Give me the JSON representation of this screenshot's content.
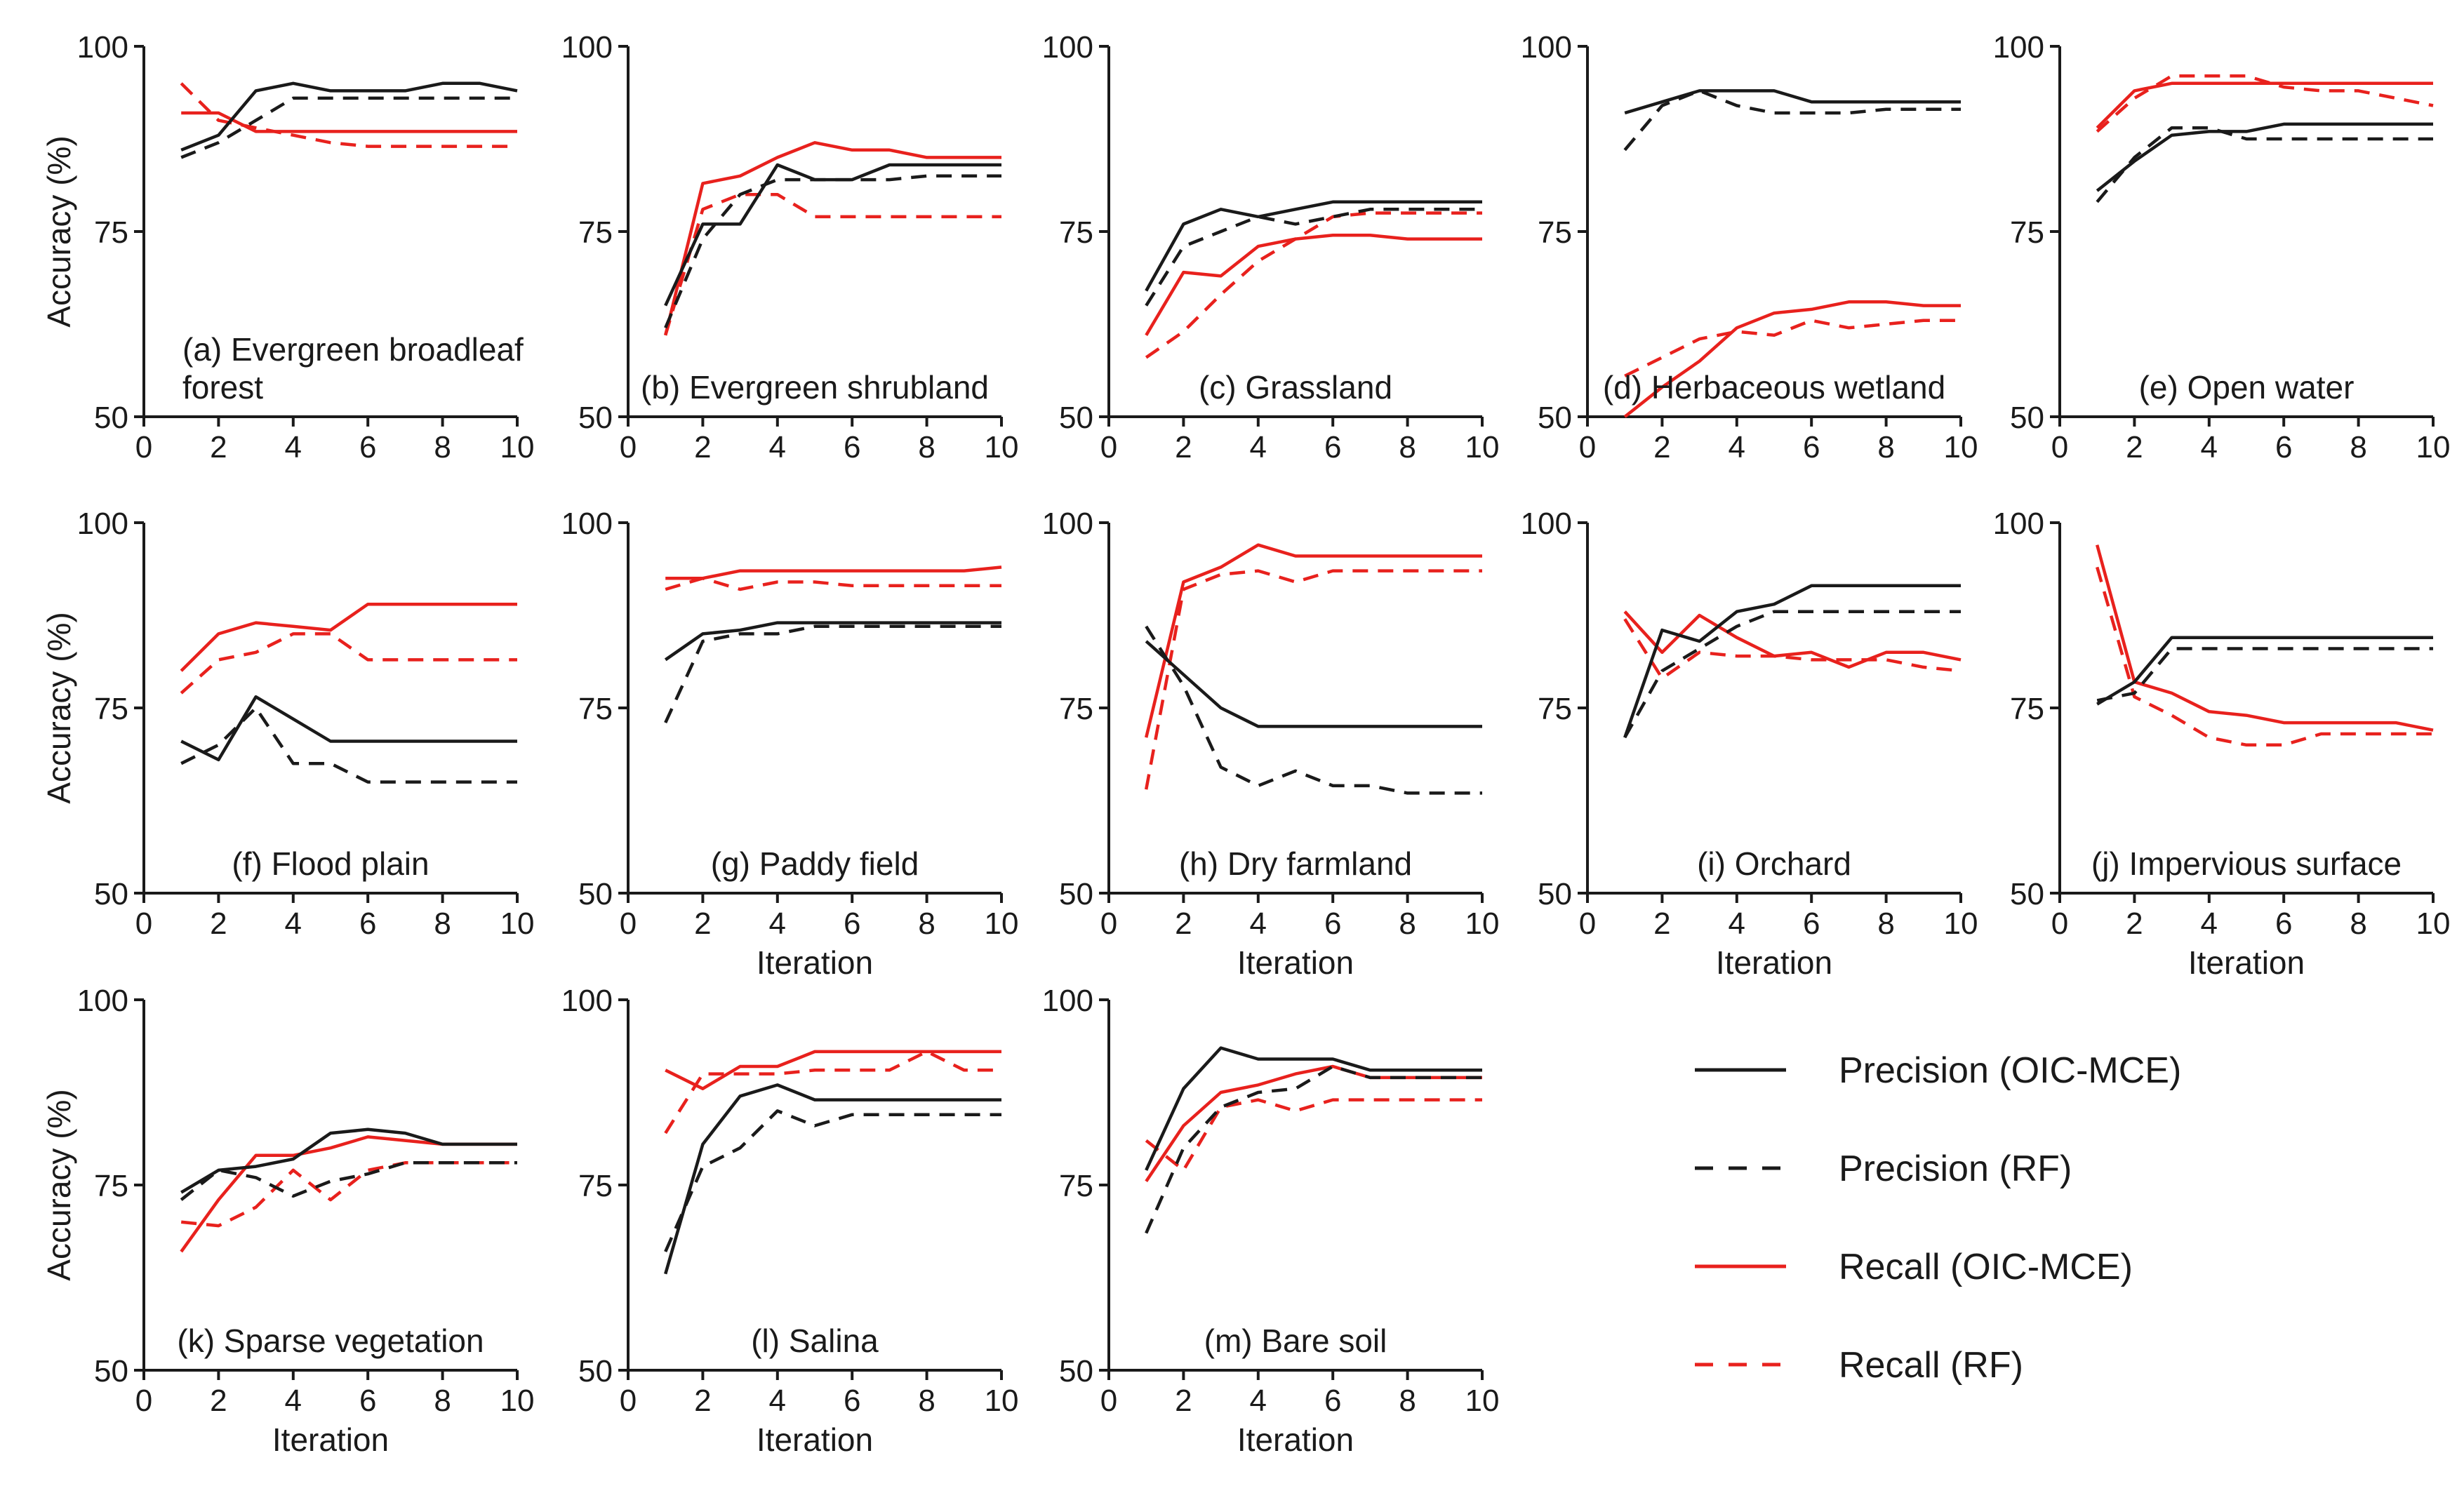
{
  "chart_data": {
    "type": "line",
    "title": "",
    "xlabel": "Iteration",
    "ylabel": "Accuracy (%)",
    "xlim": [
      0,
      10
    ],
    "ylim": [
      50,
      100
    ],
    "xticks": [
      0,
      2,
      4,
      6,
      8,
      10
    ],
    "yticks": [
      50,
      75,
      100
    ],
    "grid": false,
    "legend": {
      "placement": "bottom-right",
      "entries": [
        {
          "key": "prec_oic",
          "label": "Precision (OIC-MCE)",
          "color": "#1a1a1a",
          "dashed": false
        },
        {
          "key": "prec_rf",
          "label": "Precision (RF)",
          "color": "#1a1a1a",
          "dashed": true
        },
        {
          "key": "rec_oic",
          "label": "Recall (OIC-MCE)",
          "color": "#e8211d",
          "dashed": false
        },
        {
          "key": "rec_rf",
          "label": "Recall (RF)",
          "color": "#e8211d",
          "dashed": true
        }
      ]
    },
    "x": [
      1,
      2,
      3,
      4,
      5,
      6,
      7,
      8,
      9,
      10
    ],
    "panels": [
      {
        "id": "a",
        "label": [
          "(a) Evergreen broadleaf",
          "forest"
        ],
        "label_pos": "bottom-left",
        "xlabel_shown": false,
        "ylabel_shown": true,
        "series": {
          "prec_oic": [
            86,
            88,
            94,
            95,
            94,
            94,
            94,
            95,
            95,
            94
          ],
          "prec_rf": [
            85,
            87,
            90,
            93,
            93,
            93,
            93,
            93,
            93,
            93
          ],
          "rec_oic": [
            91,
            91,
            88.5,
            88.5,
            88.5,
            88.5,
            88.5,
            88.5,
            88.5,
            88.5
          ],
          "rec_rf": [
            95,
            90,
            89,
            88,
            87,
            86.5,
            86.5,
            86.5,
            86.5,
            86.5
          ]
        }
      },
      {
        "id": "b",
        "label": [
          "(b) Evergreen shrubland"
        ],
        "label_pos": "bottom-center",
        "xlabel_shown": false,
        "ylabel_shown": false,
        "series": {
          "prec_oic": [
            65,
            76,
            76,
            84,
            82,
            82,
            84,
            84,
            84,
            84
          ],
          "prec_rf": [
            62,
            74,
            80,
            82,
            82,
            82,
            82,
            82.5,
            82.5,
            82.5
          ],
          "rec_oic": [
            61,
            81.5,
            82.5,
            85,
            87,
            86,
            86,
            85,
            85,
            85
          ],
          "rec_rf": [
            61,
            78,
            80,
            80,
            77,
            77,
            77,
            77,
            77,
            77
          ]
        }
      },
      {
        "id": "c",
        "label": [
          "(c) Grassland"
        ],
        "label_pos": "bottom-center",
        "xlabel_shown": false,
        "ylabel_shown": false,
        "series": {
          "prec_oic": [
            67,
            76,
            78,
            77,
            78,
            79,
            79,
            79,
            79,
            79
          ],
          "prec_rf": [
            65,
            73,
            75,
            77,
            76,
            77,
            78,
            78,
            78,
            78
          ],
          "rec_oic": [
            61,
            69.5,
            69,
            73,
            74,
            74.5,
            74.5,
            74,
            74,
            74
          ],
          "rec_rf": [
            58,
            61.5,
            66.5,
            71,
            74,
            77,
            77.5,
            77.5,
            77.5,
            77.5
          ]
        }
      },
      {
        "id": "d",
        "label": [
          "(d) Herbaceous wetland"
        ],
        "label_pos": "bottom-center",
        "xlabel_shown": false,
        "ylabel_shown": false,
        "series": {
          "prec_oic": [
            91,
            92.5,
            94,
            94,
            94,
            92.5,
            92.5,
            92.5,
            92.5,
            92.5
          ],
          "prec_rf": [
            86,
            92,
            94,
            92,
            91,
            91,
            91,
            91.5,
            91.5,
            91.5
          ],
          "rec_oic": [
            50,
            54,
            57.5,
            62,
            64,
            64.5,
            65.5,
            65.5,
            65,
            65
          ],
          "rec_rf": [
            55.5,
            58,
            60.5,
            61.5,
            61,
            63,
            62,
            62.5,
            63,
            63
          ]
        }
      },
      {
        "id": "e",
        "label": [
          "(e) Open water"
        ],
        "label_pos": "bottom-center",
        "xlabel_shown": false,
        "ylabel_shown": false,
        "series": {
          "prec_oic": [
            80.5,
            84.5,
            88,
            88.5,
            88.5,
            89.5,
            89.5,
            89.5,
            89.5,
            89.5
          ],
          "prec_rf": [
            79,
            85,
            89,
            89,
            87.5,
            87.5,
            87.5,
            87.5,
            87.5,
            87.5
          ],
          "rec_oic": [
            89,
            94,
            95,
            95,
            95,
            95,
            95,
            95,
            95,
            95
          ],
          "rec_rf": [
            88.5,
            93,
            96,
            96,
            96,
            94.5,
            94,
            94,
            93,
            92
          ]
        }
      },
      {
        "id": "f",
        "label": [
          "(f) Flood plain"
        ],
        "label_pos": "bottom-center",
        "xlabel_shown": false,
        "ylabel_shown": true,
        "series": {
          "prec_oic": [
            70.5,
            68,
            76.5,
            73.5,
            70.5,
            70.5,
            70.5,
            70.5,
            70.5,
            70.5
          ],
          "prec_rf": [
            67.5,
            70,
            75,
            67.5,
            67.5,
            65,
            65,
            65,
            65,
            65
          ],
          "rec_oic": [
            80,
            85,
            86.5,
            86,
            85.5,
            89,
            89,
            89,
            89,
            89
          ],
          "rec_rf": [
            77,
            81.5,
            82.5,
            85,
            85,
            81.5,
            81.5,
            81.5,
            81.5,
            81.5
          ]
        }
      },
      {
        "id": "g",
        "label": [
          "(g) Paddy field"
        ],
        "label_pos": "bottom-center",
        "xlabel_shown": true,
        "ylabel_shown": false,
        "series": {
          "prec_oic": [
            81.5,
            85,
            85.5,
            86.5,
            86.5,
            86.5,
            86.5,
            86.5,
            86.5,
            86.5
          ],
          "prec_rf": [
            73,
            84,
            85,
            85,
            86,
            86,
            86,
            86,
            86,
            86
          ],
          "rec_oic": [
            92.5,
            92.5,
            93.5,
            93.5,
            93.5,
            93.5,
            93.5,
            93.5,
            93.5,
            94
          ],
          "rec_rf": [
            91,
            92.5,
            91,
            92,
            92,
            91.5,
            91.5,
            91.5,
            91.5,
            91.5
          ]
        }
      },
      {
        "id": "h",
        "label": [
          "(h) Dry farmland"
        ],
        "label_pos": "bottom-center",
        "xlabel_shown": true,
        "ylabel_shown": false,
        "series": {
          "prec_oic": [
            84,
            79.5,
            75,
            72.5,
            72.5,
            72.5,
            72.5,
            72.5,
            72.5,
            72.5
          ],
          "prec_rf": [
            86,
            78,
            67,
            64.5,
            66.5,
            64.5,
            64.5,
            63.5,
            63.5,
            63.5
          ],
          "rec_oic": [
            71,
            92,
            94,
            97,
            95.5,
            95.5,
            95.5,
            95.5,
            95.5,
            95.5
          ],
          "rec_rf": [
            64,
            91,
            93,
            93.5,
            92,
            93.5,
            93.5,
            93.5,
            93.5,
            93.5
          ]
        }
      },
      {
        "id": "i",
        "label": [
          "(i) Orchard"
        ],
        "label_pos": "bottom-center",
        "xlabel_shown": true,
        "ylabel_shown": false,
        "series": {
          "prec_oic": [
            71,
            85.5,
            84,
            88,
            89,
            91.5,
            91.5,
            91.5,
            91.5,
            91.5
          ],
          "prec_rf": [
            71,
            80,
            83,
            86,
            88,
            88,
            88,
            88,
            88,
            88
          ],
          "rec_oic": [
            88,
            82.5,
            87.5,
            84.5,
            82,
            82.5,
            80.5,
            82.5,
            82.5,
            81.5
          ],
          "rec_rf": [
            87,
            79,
            82.5,
            82,
            82,
            81.5,
            81.5,
            81.5,
            80.5,
            80
          ]
        }
      },
      {
        "id": "j",
        "label": [
          "(j) Impervious surface"
        ],
        "label_pos": "bottom-center",
        "xlabel_shown": true,
        "ylabel_shown": false,
        "series": {
          "prec_oic": [
            75.5,
            78.5,
            84.5,
            84.5,
            84.5,
            84.5,
            84.5,
            84.5,
            84.5,
            84.5
          ],
          "prec_rf": [
            76,
            77,
            83,
            83,
            83,
            83,
            83,
            83,
            83,
            83
          ],
          "rec_oic": [
            97,
            78.5,
            77,
            74.5,
            74,
            73,
            73,
            73,
            73,
            72
          ],
          "rec_rf": [
            94,
            76.5,
            74,
            71,
            70,
            70,
            71.5,
            71.5,
            71.5,
            71.5
          ]
        }
      },
      {
        "id": "k",
        "label": [
          "(k) Sparse vegetation"
        ],
        "label_pos": "bottom-center",
        "xlabel_shown": true,
        "ylabel_shown": true,
        "series": {
          "prec_oic": [
            74,
            77,
            77.5,
            78.5,
            82,
            82.5,
            82,
            80.5,
            80.5,
            80.5
          ],
          "prec_rf": [
            73,
            77,
            76,
            73.5,
            75.5,
            76.5,
            78,
            78,
            78,
            78
          ],
          "rec_oic": [
            66,
            73,
            79,
            79,
            80,
            81.5,
            81,
            80.5,
            80.5,
            80.5
          ],
          "rec_rf": [
            70,
            69.5,
            72,
            77,
            73,
            77,
            78,
            78,
            78,
            78
          ]
        }
      },
      {
        "id": "l",
        "label": [
          "(l) Salina"
        ],
        "label_pos": "bottom-center",
        "xlabel_shown": true,
        "ylabel_shown": false,
        "series": {
          "prec_oic": [
            63,
            80.5,
            87,
            88.5,
            86.5,
            86.5,
            86.5,
            86.5,
            86.5,
            86.5
          ],
          "prec_rf": [
            66,
            77.5,
            80,
            85,
            83,
            84.5,
            84.5,
            84.5,
            84.5,
            84.5
          ],
          "rec_oic": [
            90.5,
            88,
            91,
            91,
            93,
            93,
            93,
            93,
            93,
            93
          ],
          "rec_rf": [
            82,
            90,
            90,
            90,
            90.5,
            90.5,
            90.5,
            93,
            90.5,
            90.5
          ]
        }
      },
      {
        "id": "m",
        "label": [
          "(m) Bare soil"
        ],
        "label_pos": "bottom-center",
        "xlabel_shown": true,
        "ylabel_shown": false,
        "series": {
          "prec_oic": [
            77,
            88,
            93.5,
            92,
            92,
            92,
            90.5,
            90.5,
            90.5,
            90.5
          ],
          "prec_rf": [
            68.5,
            80,
            85.5,
            87.5,
            88,
            91,
            89.5,
            89.5,
            89.5,
            89.5
          ],
          "rec_oic": [
            75.5,
            83,
            87.5,
            88.5,
            90,
            91,
            89.5,
            89.5,
            89.5,
            89.5
          ],
          "rec_rf": [
            81,
            77,
            85.5,
            86.5,
            85,
            86.5,
            86.5,
            86.5,
            86.5,
            86.5
          ]
        }
      }
    ]
  }
}
